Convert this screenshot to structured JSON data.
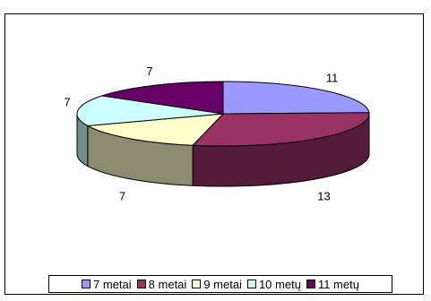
{
  "chart_data": {
    "type": "pie",
    "title": "",
    "categories": [
      "7 metai",
      "8 metai",
      "9 metai",
      "10 metų",
      "11 metų"
    ],
    "values": [
      11,
      13,
      7,
      7,
      7
    ],
    "colors": [
      "#9999ff",
      "#993366",
      "#ffffcc",
      "#ccffff",
      "#660066"
    ],
    "data_labels": [
      "11",
      "13",
      "7",
      "7",
      "7"
    ],
    "legend_position": "bottom",
    "style": "3d-exploded-none"
  }
}
